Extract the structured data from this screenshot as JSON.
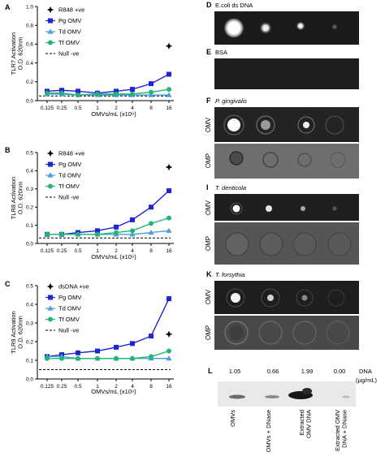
{
  "colors": {
    "pg": "#1f25d6",
    "td": "#4d9de0",
    "tf": "#22b573",
    "r848": "#000000",
    "null": "#000000",
    "gel_dark": "#1c1c1c",
    "gel_light": "#c8c8c8"
  },
  "chart_data": [
    {
      "panel": "A",
      "type": "line",
      "ylabel": "TLR7 Activation O.D. 620nm",
      "xlabel": "OMVs/mL (x10⁹)",
      "x": [
        "0.125",
        "0.25",
        "0.5",
        "1",
        "2",
        "4",
        "8",
        "16"
      ],
      "ylim": [
        0,
        1.0
      ],
      "yticks": [
        "0.0",
        "0.2",
        "0.4",
        "0.6",
        "0.8",
        "1.0"
      ],
      "series": [
        {
          "name": "Pg OMV",
          "values": [
            0.1,
            0.11,
            0.1,
            0.08,
            0.1,
            0.12,
            0.18,
            0.28
          ]
        },
        {
          "name": "Td OMV",
          "values": [
            0.07,
            0.07,
            0.06,
            0.06,
            0.06,
            0.06,
            0.06,
            0.06
          ]
        },
        {
          "name": "Tf OMV",
          "values": [
            0.08,
            0.08,
            0.06,
            0.07,
            0.07,
            0.07,
            0.09,
            0.12
          ]
        }
      ],
      "control": {
        "name": "R848 +ve",
        "x": "16",
        "value": 0.58
      },
      "null_line": {
        "name": "Null -ve",
        "value": 0.05
      }
    },
    {
      "panel": "B",
      "type": "line",
      "ylabel": "TLR8 Activation O.D. 620nm",
      "xlabel": "OMVs/mL (x10⁹)",
      "x": [
        "0.125",
        "0.25",
        "0.5",
        "1",
        "2",
        "4",
        "8",
        "16"
      ],
      "ylim": [
        0,
        0.5
      ],
      "yticks": [
        "0.0",
        "0.1",
        "0.2",
        "0.3",
        "0.4",
        "0.5"
      ],
      "series": [
        {
          "name": "Pg OMV",
          "values": [
            0.05,
            0.05,
            0.06,
            0.07,
            0.09,
            0.13,
            0.2,
            0.29
          ]
        },
        {
          "name": "Td OMV",
          "values": [
            0.05,
            0.05,
            0.05,
            0.05,
            0.05,
            0.05,
            0.06,
            0.07
          ]
        },
        {
          "name": "Tf OMV",
          "values": [
            0.05,
            0.05,
            0.05,
            0.05,
            0.06,
            0.07,
            0.11,
            0.14
          ]
        }
      ],
      "control": {
        "name": "R848 +ve",
        "x": "16",
        "value": 0.42
      },
      "null_line": {
        "name": "Null -ve",
        "value": 0.03
      }
    },
    {
      "panel": "C",
      "type": "line",
      "ylabel": "TLR9 Activation O.D. 620nm",
      "xlabel": "OMVs/mL (x10⁹)",
      "x": [
        "0.125",
        "0.25",
        "0.5",
        "1",
        "2",
        "4",
        "8",
        "16"
      ],
      "ylim": [
        0,
        0.5
      ],
      "yticks": [
        "0.0",
        "0.1",
        "0.2",
        "0.3",
        "0.4",
        "0.5"
      ],
      "series": [
        {
          "name": "Pg OMV",
          "values": [
            0.12,
            0.13,
            0.14,
            0.15,
            0.17,
            0.19,
            0.23,
            0.43
          ]
        },
        {
          "name": "Td OMV",
          "values": [
            0.12,
            0.12,
            0.11,
            0.11,
            0.11,
            0.11,
            0.11,
            0.11
          ]
        },
        {
          "name": "Tf OMV",
          "values": [
            0.11,
            0.11,
            0.11,
            0.11,
            0.11,
            0.11,
            0.12,
            0.15
          ]
        }
      ],
      "control": {
        "name": "dsDNA +ve",
        "x": "16",
        "value": 0.24
      },
      "null_line": {
        "name": "Null -ve",
        "value": 0.05
      }
    }
  ],
  "gels": {
    "D": {
      "letter": "D",
      "title": "E.coli ds DNA"
    },
    "E": {
      "letter": "E",
      "title": "BSA"
    },
    "F": {
      "letter": "F",
      "title": "P. gingivalis",
      "row1": "OMV",
      "row2": "OMP"
    },
    "I": {
      "letter": "I",
      "title": "T. denticola",
      "row1": "OMV",
      "row2": "OMP"
    },
    "K": {
      "letter": "K",
      "title": "T. forsythia",
      "row1": "OMV",
      "row2": "OMP"
    }
  },
  "blot": {
    "letter": "L",
    "values": [
      "1.05",
      "0.66",
      "1.99",
      "0.00"
    ],
    "unit_line1": "DNA",
    "unit_line2": "(μg/mL)",
    "lanes": [
      "OMVs",
      "OMVs + DNase",
      "Extracted OMV DNA",
      "Extracted OMV DNA + DNase"
    ],
    "lane_lines": [
      [
        "OMVs"
      ],
      [
        "OMVs + DNase"
      ],
      [
        "Extracted",
        "OMV DNA"
      ],
      [
        "Extracted OMV",
        "DNA + DNase"
      ]
    ]
  }
}
